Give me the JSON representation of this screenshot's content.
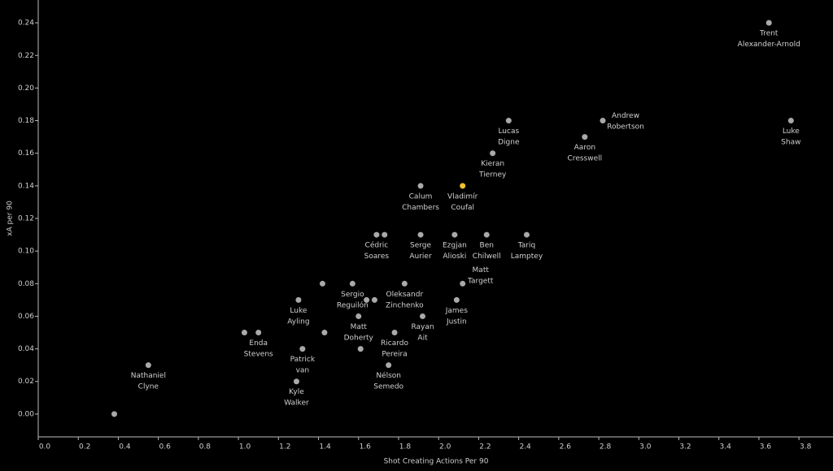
{
  "chart_data": {
    "type": "scatter",
    "xlabel": "Shot Creating Actions Per 90",
    "ylabel": "xA per 90",
    "x": [
      0.38,
      0.55,
      1.03,
      1.1,
      1.29,
      1.32,
      1.3,
      1.43,
      1.42,
      1.57,
      1.64,
      1.68,
      1.6,
      1.61,
      1.78,
      1.75,
      1.83,
      1.92,
      1.69,
      1.73,
      1.91,
      1.91,
      2.12,
      2.08,
      2.24,
      2.44,
      2.09,
      2.12,
      2.27,
      2.35,
      2.73,
      2.82,
      3.65,
      3.76
    ],
    "values": [
      0.0,
      0.03,
      0.05,
      0.05,
      0.02,
      0.04,
      0.07,
      0.05,
      0.08,
      0.08,
      0.07,
      0.07,
      0.06,
      0.04,
      0.05,
      0.03,
      0.08,
      0.06,
      0.11,
      0.11,
      0.11,
      0.14,
      0.14,
      0.11,
      0.11,
      0.11,
      0.07,
      0.08,
      0.16,
      0.18,
      0.17,
      0.18,
      0.24,
      0.18
    ],
    "labels": [
      null,
      [
        "Nathaniel",
        "Clyne"
      ],
      null,
      [
        "Enda",
        "Stevens"
      ],
      [
        "Kyle",
        "Walker"
      ],
      [
        "Patrick",
        "van"
      ],
      [
        "Luke",
        "Ayling"
      ],
      null,
      null,
      [
        "Sergio",
        "Reguilón"
      ],
      null,
      null,
      [
        "Matt",
        "Doherty"
      ],
      null,
      [
        "Ricardo",
        "Pereira"
      ],
      [
        "Nélson",
        "Semedo"
      ],
      [
        "Oleksandr",
        "Zinchenko"
      ],
      [
        "Rayan",
        "Ait"
      ],
      [
        "Cédric",
        "Soares"
      ],
      null,
      [
        "Serge",
        "Aurier"
      ],
      [
        "Calum",
        "Chambers"
      ],
      [
        "Vladimír",
        "Coufal"
      ],
      [
        "Ezgjan",
        "Alioski"
      ],
      [
        "Ben",
        "Chilwell"
      ],
      [
        "Tariq",
        "Lamptey"
      ],
      [
        "James",
        "Justin"
      ],
      [
        "Matt",
        "Targett"
      ],
      [
        "Kieran",
        "Tierney"
      ],
      [
        "Lucas",
        "Digne"
      ],
      [
        "Aaron",
        "Cresswell"
      ],
      [
        "Andrew",
        "Robertson"
      ],
      [
        "Trent",
        "Alexander-Arnold"
      ],
      [
        "Luke",
        "Shaw"
      ]
    ],
    "color": "#a9a9a9",
    "highlight": {
      "index": 22,
      "color": "#f2c12e"
    },
    "xlim": [
      0,
      3.97
    ],
    "ylim": [
      -0.014,
      0.254
    ],
    "xticks": [
      {
        "value": 0,
        "label": "0.0"
      },
      0.2,
      0.4,
      0.6,
      0.8,
      {
        "value": 1,
        "label": "1.0"
      },
      1.2,
      1.4,
      1.6,
      1.8,
      {
        "value": 2,
        "label": "2.0"
      },
      2.2,
      2.4,
      2.6,
      2.8,
      {
        "value": 3,
        "label": "3.0"
      },
      3.2,
      3.4,
      3.6,
      3.8
    ],
    "yticks": [
      {
        "value": 0,
        "label": "0.00"
      },
      0.02,
      0.04,
      0.06,
      0.08,
      {
        "value": 0.1,
        "label": "0.10"
      },
      0.12,
      0.14,
      0.16,
      0.18,
      {
        "value": 0.2,
        "label": "0.20"
      },
      0.22,
      0.24
    ]
  }
}
